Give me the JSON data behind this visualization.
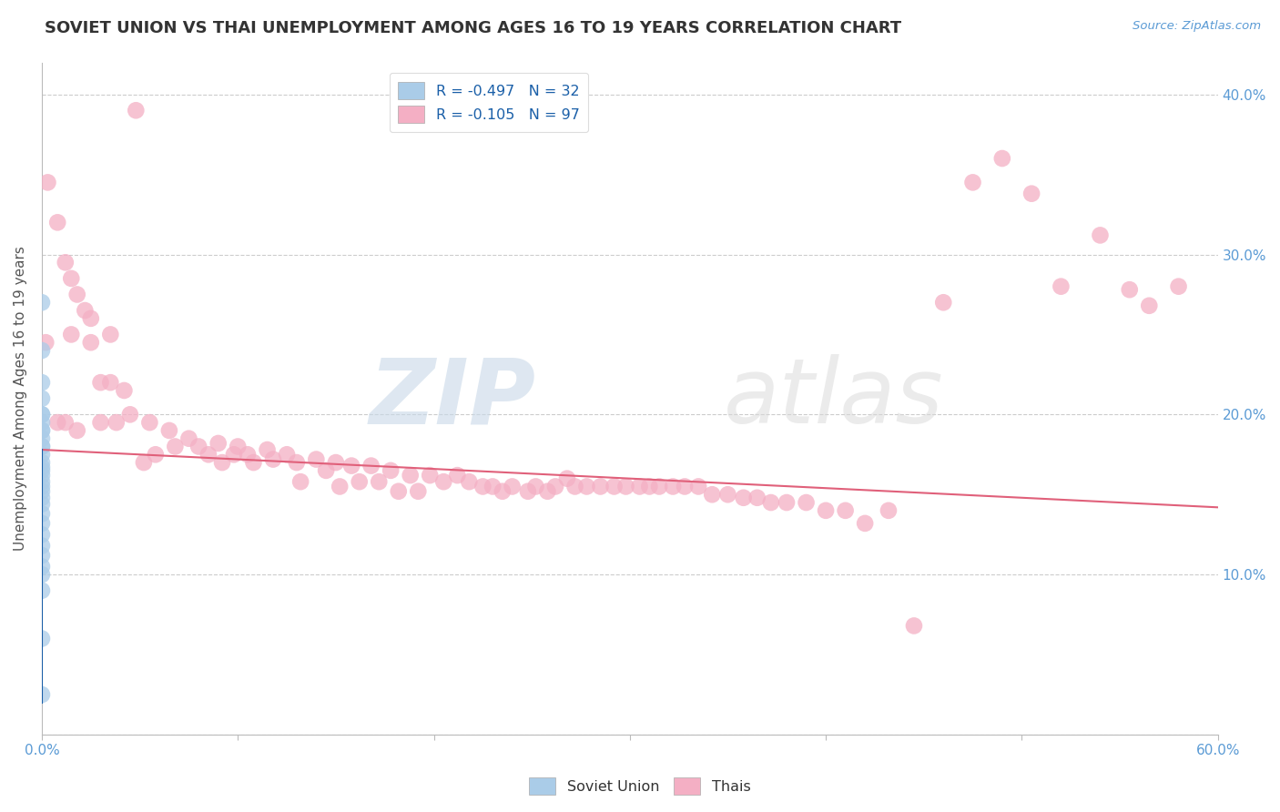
{
  "title": "SOVIET UNION VS THAI UNEMPLOYMENT AMONG AGES 16 TO 19 YEARS CORRELATION CHART",
  "source": "Source: ZipAtlas.com",
  "ylabel": "Unemployment Among Ages 16 to 19 years",
  "xlim": [
    0.0,
    0.6
  ],
  "ylim": [
    0.0,
    0.42
  ],
  "legend_soviet": "R = -0.497   N = 32",
  "legend_thai": "R = -0.105   N = 97",
  "soviet_color": "#aacce8",
  "thai_color": "#f4afc4",
  "soviet_line_color": "#1a5fa8",
  "thai_line_color": "#e0607a",
  "watermark_zip": "ZIP",
  "watermark_atlas": "atlas",
  "background_color": "#ffffff",
  "grid_color": "#cccccc",
  "soviet_scatter_x": [
    0.0,
    0.0,
    0.0,
    0.0,
    0.0,
    0.0,
    0.0,
    0.0,
    0.0,
    0.0,
    0.0,
    0.0,
    0.0,
    0.0,
    0.0,
    0.0,
    0.0,
    0.0,
    0.0,
    0.0,
    0.0,
    0.0,
    0.0,
    0.0,
    0.0,
    0.0,
    0.0,
    0.0,
    0.0,
    0.0,
    0.0,
    0.0
  ],
  "soviet_scatter_y": [
    0.27,
    0.24,
    0.22,
    0.21,
    0.2,
    0.2,
    0.195,
    0.19,
    0.19,
    0.185,
    0.18,
    0.18,
    0.175,
    0.17,
    0.167,
    0.165,
    0.162,
    0.158,
    0.155,
    0.152,
    0.148,
    0.144,
    0.138,
    0.132,
    0.125,
    0.118,
    0.112,
    0.105,
    0.1,
    0.09,
    0.06,
    0.025
  ],
  "thai_scatter_x": [
    0.002,
    0.003,
    0.008,
    0.012,
    0.015,
    0.018,
    0.022,
    0.025,
    0.018,
    0.008,
    0.012,
    0.03,
    0.035,
    0.03,
    0.042,
    0.045,
    0.038,
    0.055,
    0.058,
    0.052,
    0.065,
    0.068,
    0.075,
    0.08,
    0.085,
    0.09,
    0.092,
    0.098,
    0.1,
    0.105,
    0.108,
    0.115,
    0.118,
    0.125,
    0.13,
    0.132,
    0.14,
    0.145,
    0.15,
    0.152,
    0.158,
    0.162,
    0.168,
    0.172,
    0.178,
    0.182,
    0.188,
    0.192,
    0.198,
    0.205,
    0.212,
    0.218,
    0.225,
    0.23,
    0.235,
    0.24,
    0.248,
    0.252,
    0.258,
    0.262,
    0.268,
    0.272,
    0.278,
    0.285,
    0.292,
    0.298,
    0.305,
    0.31,
    0.315,
    0.322,
    0.328,
    0.335,
    0.342,
    0.35,
    0.358,
    0.365,
    0.372,
    0.38,
    0.39,
    0.4,
    0.41,
    0.42,
    0.432,
    0.445,
    0.46,
    0.475,
    0.49,
    0.505,
    0.52,
    0.54,
    0.555,
    0.565,
    0.58,
    0.015,
    0.025,
    0.035,
    0.048
  ],
  "thai_scatter_y": [
    0.245,
    0.345,
    0.32,
    0.295,
    0.285,
    0.275,
    0.265,
    0.26,
    0.19,
    0.195,
    0.195,
    0.22,
    0.22,
    0.195,
    0.215,
    0.2,
    0.195,
    0.195,
    0.175,
    0.17,
    0.19,
    0.18,
    0.185,
    0.18,
    0.175,
    0.182,
    0.17,
    0.175,
    0.18,
    0.175,
    0.17,
    0.178,
    0.172,
    0.175,
    0.17,
    0.158,
    0.172,
    0.165,
    0.17,
    0.155,
    0.168,
    0.158,
    0.168,
    0.158,
    0.165,
    0.152,
    0.162,
    0.152,
    0.162,
    0.158,
    0.162,
    0.158,
    0.155,
    0.155,
    0.152,
    0.155,
    0.152,
    0.155,
    0.152,
    0.155,
    0.16,
    0.155,
    0.155,
    0.155,
    0.155,
    0.155,
    0.155,
    0.155,
    0.155,
    0.155,
    0.155,
    0.155,
    0.15,
    0.15,
    0.148,
    0.148,
    0.145,
    0.145,
    0.145,
    0.14,
    0.14,
    0.132,
    0.14,
    0.068,
    0.27,
    0.345,
    0.36,
    0.338,
    0.28,
    0.312,
    0.278,
    0.268,
    0.28,
    0.25,
    0.245,
    0.25,
    0.39
  ],
  "thai_line_x0": 0.0,
  "thai_line_y0": 0.178,
  "thai_line_x1": 0.6,
  "thai_line_y1": 0.142,
  "soviet_line_x0": 0.0,
  "soviet_line_y0": 0.178,
  "soviet_line_x1": 0.0,
  "soviet_line_y1": 0.02
}
